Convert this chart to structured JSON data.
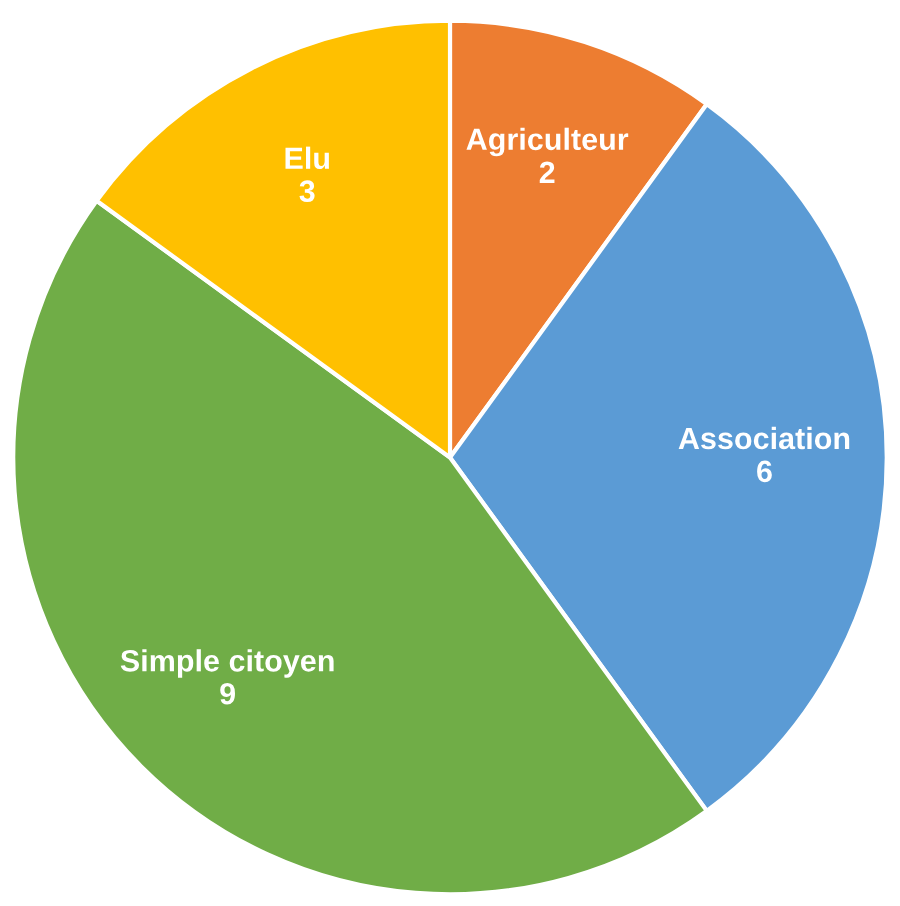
{
  "chart_data": {
    "type": "pie",
    "categories": [
      "Agriculteur",
      "Association",
      "Simple citoyen",
      "Elu"
    ],
    "values": [
      2,
      6,
      9,
      3
    ],
    "colors": [
      "#ed7d31",
      "#5b9bd5",
      "#70ad47",
      "#ffc000"
    ],
    "data_labels": true
  }
}
